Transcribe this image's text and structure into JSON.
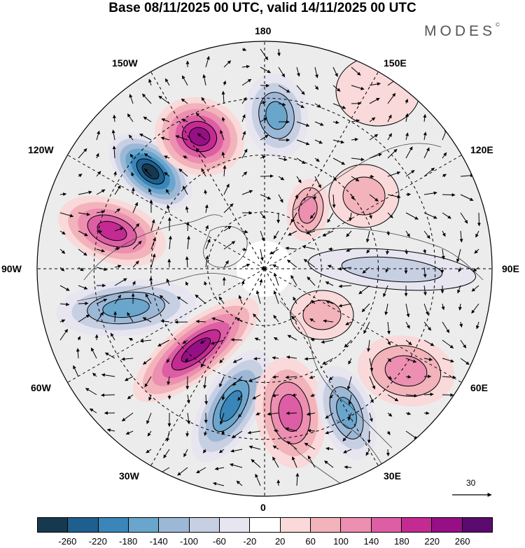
{
  "title": "Base 08/11/2025 00 UTC, valid 14/11/2025 00 UTC",
  "brand": "MODES",
  "brand_mark": "©",
  "longitude_labels": {
    "lon_180": "180",
    "lon_150e": "150E",
    "lon_120e": "120E",
    "lon_90e": "90E",
    "lon_60e": "60E",
    "lon_30e": "30E",
    "lon_0": "0",
    "lon_30w": "30W",
    "lon_60w": "60W",
    "lon_90w": "90W",
    "lon_120w": "120W",
    "lon_150w": "150W"
  },
  "reference_vector_label": "30",
  "colorbar": {
    "colors": [
      "#16394f",
      "#1f5f8e",
      "#3a86b9",
      "#6aa6cc",
      "#9db8d6",
      "#c7cfe3",
      "#e6e5f0",
      "#ffffff",
      "#f9d9d9",
      "#f2b3bb",
      "#ec8fb0",
      "#dd5ea4",
      "#c42b92",
      "#960f84",
      "#5b0a6e"
    ],
    "ticks": [
      "-260",
      "-220",
      "-180",
      "-140",
      "-100",
      "-60",
      "-20",
      "20",
      "60",
      "100",
      "140",
      "180",
      "220",
      "260"
    ]
  },
  "colors": {
    "positive_accent": "#c42b92",
    "negative_accent": "#1f5f8e"
  }
}
